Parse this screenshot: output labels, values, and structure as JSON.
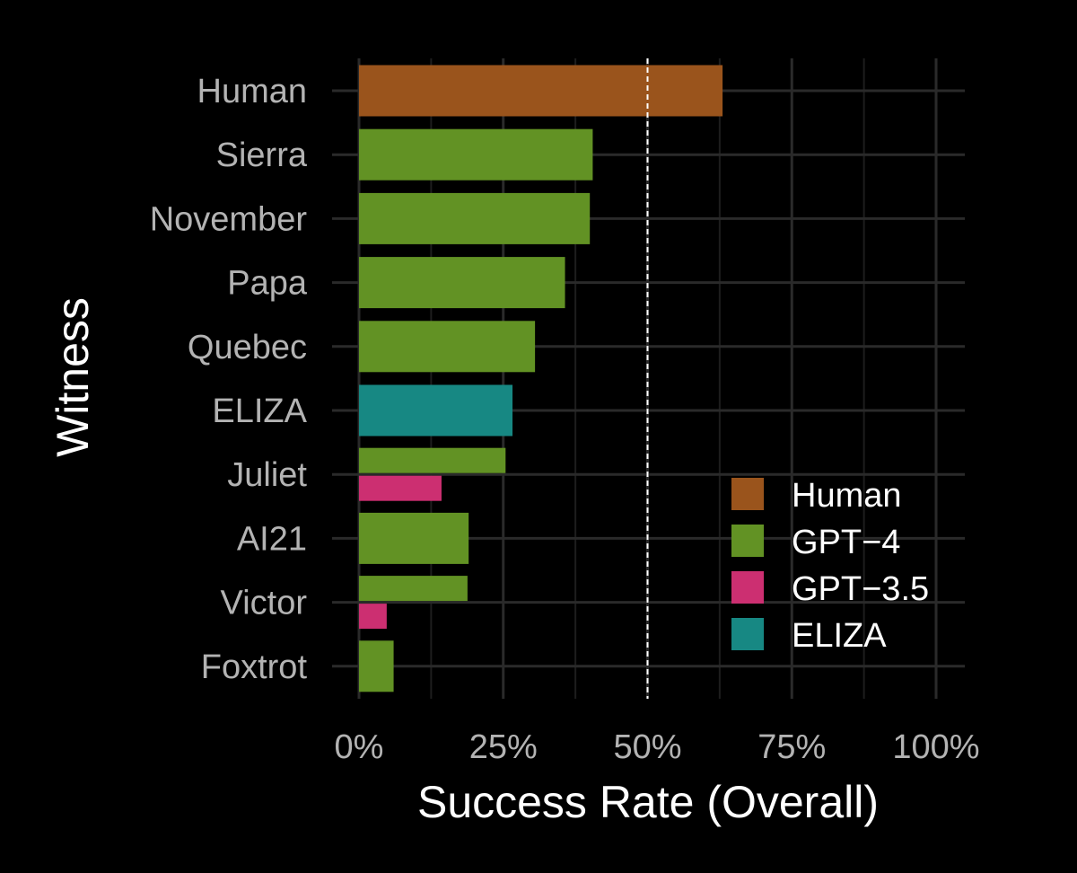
{
  "chart_data": {
    "type": "bar",
    "orientation": "horizontal",
    "title": "",
    "xlabel": "Success Rate (Overall)",
    "ylabel": "Witness",
    "xlim": [
      0,
      1
    ],
    "x_ticks": [
      0,
      0.25,
      0.5,
      0.75,
      1.0
    ],
    "x_tick_labels": [
      "0%",
      "25%",
      "50%",
      "75%",
      "100%"
    ],
    "reference_line": {
      "value": 0.5,
      "style": "dashed",
      "color": "#ffffff"
    },
    "grid": true,
    "legend_position": "bottom-right",
    "series": [
      {
        "name": "Human",
        "color": "#9a541c"
      },
      {
        "name": "GPT−4",
        "color": "#629224"
      },
      {
        "name": "GPT−3.5",
        "color": "#cc2f71"
      },
      {
        "name": "ELIZA",
        "color": "#178883"
      }
    ],
    "categories": [
      "Human",
      "Sierra",
      "November",
      "Papa",
      "Quebec",
      "ELIZA",
      "Juliet",
      "AI21",
      "Victor",
      "Foxtrot"
    ],
    "bars": [
      {
        "category": "Human",
        "series": "Human",
        "value": 0.63
      },
      {
        "category": "Sierra",
        "series": "GPT−4",
        "value": 0.405
      },
      {
        "category": "November",
        "series": "GPT−4",
        "value": 0.4
      },
      {
        "category": "Papa",
        "series": "GPT−4",
        "value": 0.357
      },
      {
        "category": "Quebec",
        "series": "GPT−4",
        "value": 0.305
      },
      {
        "category": "ELIZA",
        "series": "ELIZA",
        "value": 0.266
      },
      {
        "category": "Juliet",
        "series": "GPT−4",
        "value": 0.254
      },
      {
        "category": "Juliet",
        "series": "GPT−3.5",
        "value": 0.143
      },
      {
        "category": "AI21",
        "series": "GPT−4",
        "value": 0.19
      },
      {
        "category": "Victor",
        "series": "GPT−4",
        "value": 0.188
      },
      {
        "category": "Victor",
        "series": "GPT−3.5",
        "value": 0.048
      },
      {
        "category": "Foxtrot",
        "series": "GPT−4",
        "value": 0.06
      }
    ]
  }
}
